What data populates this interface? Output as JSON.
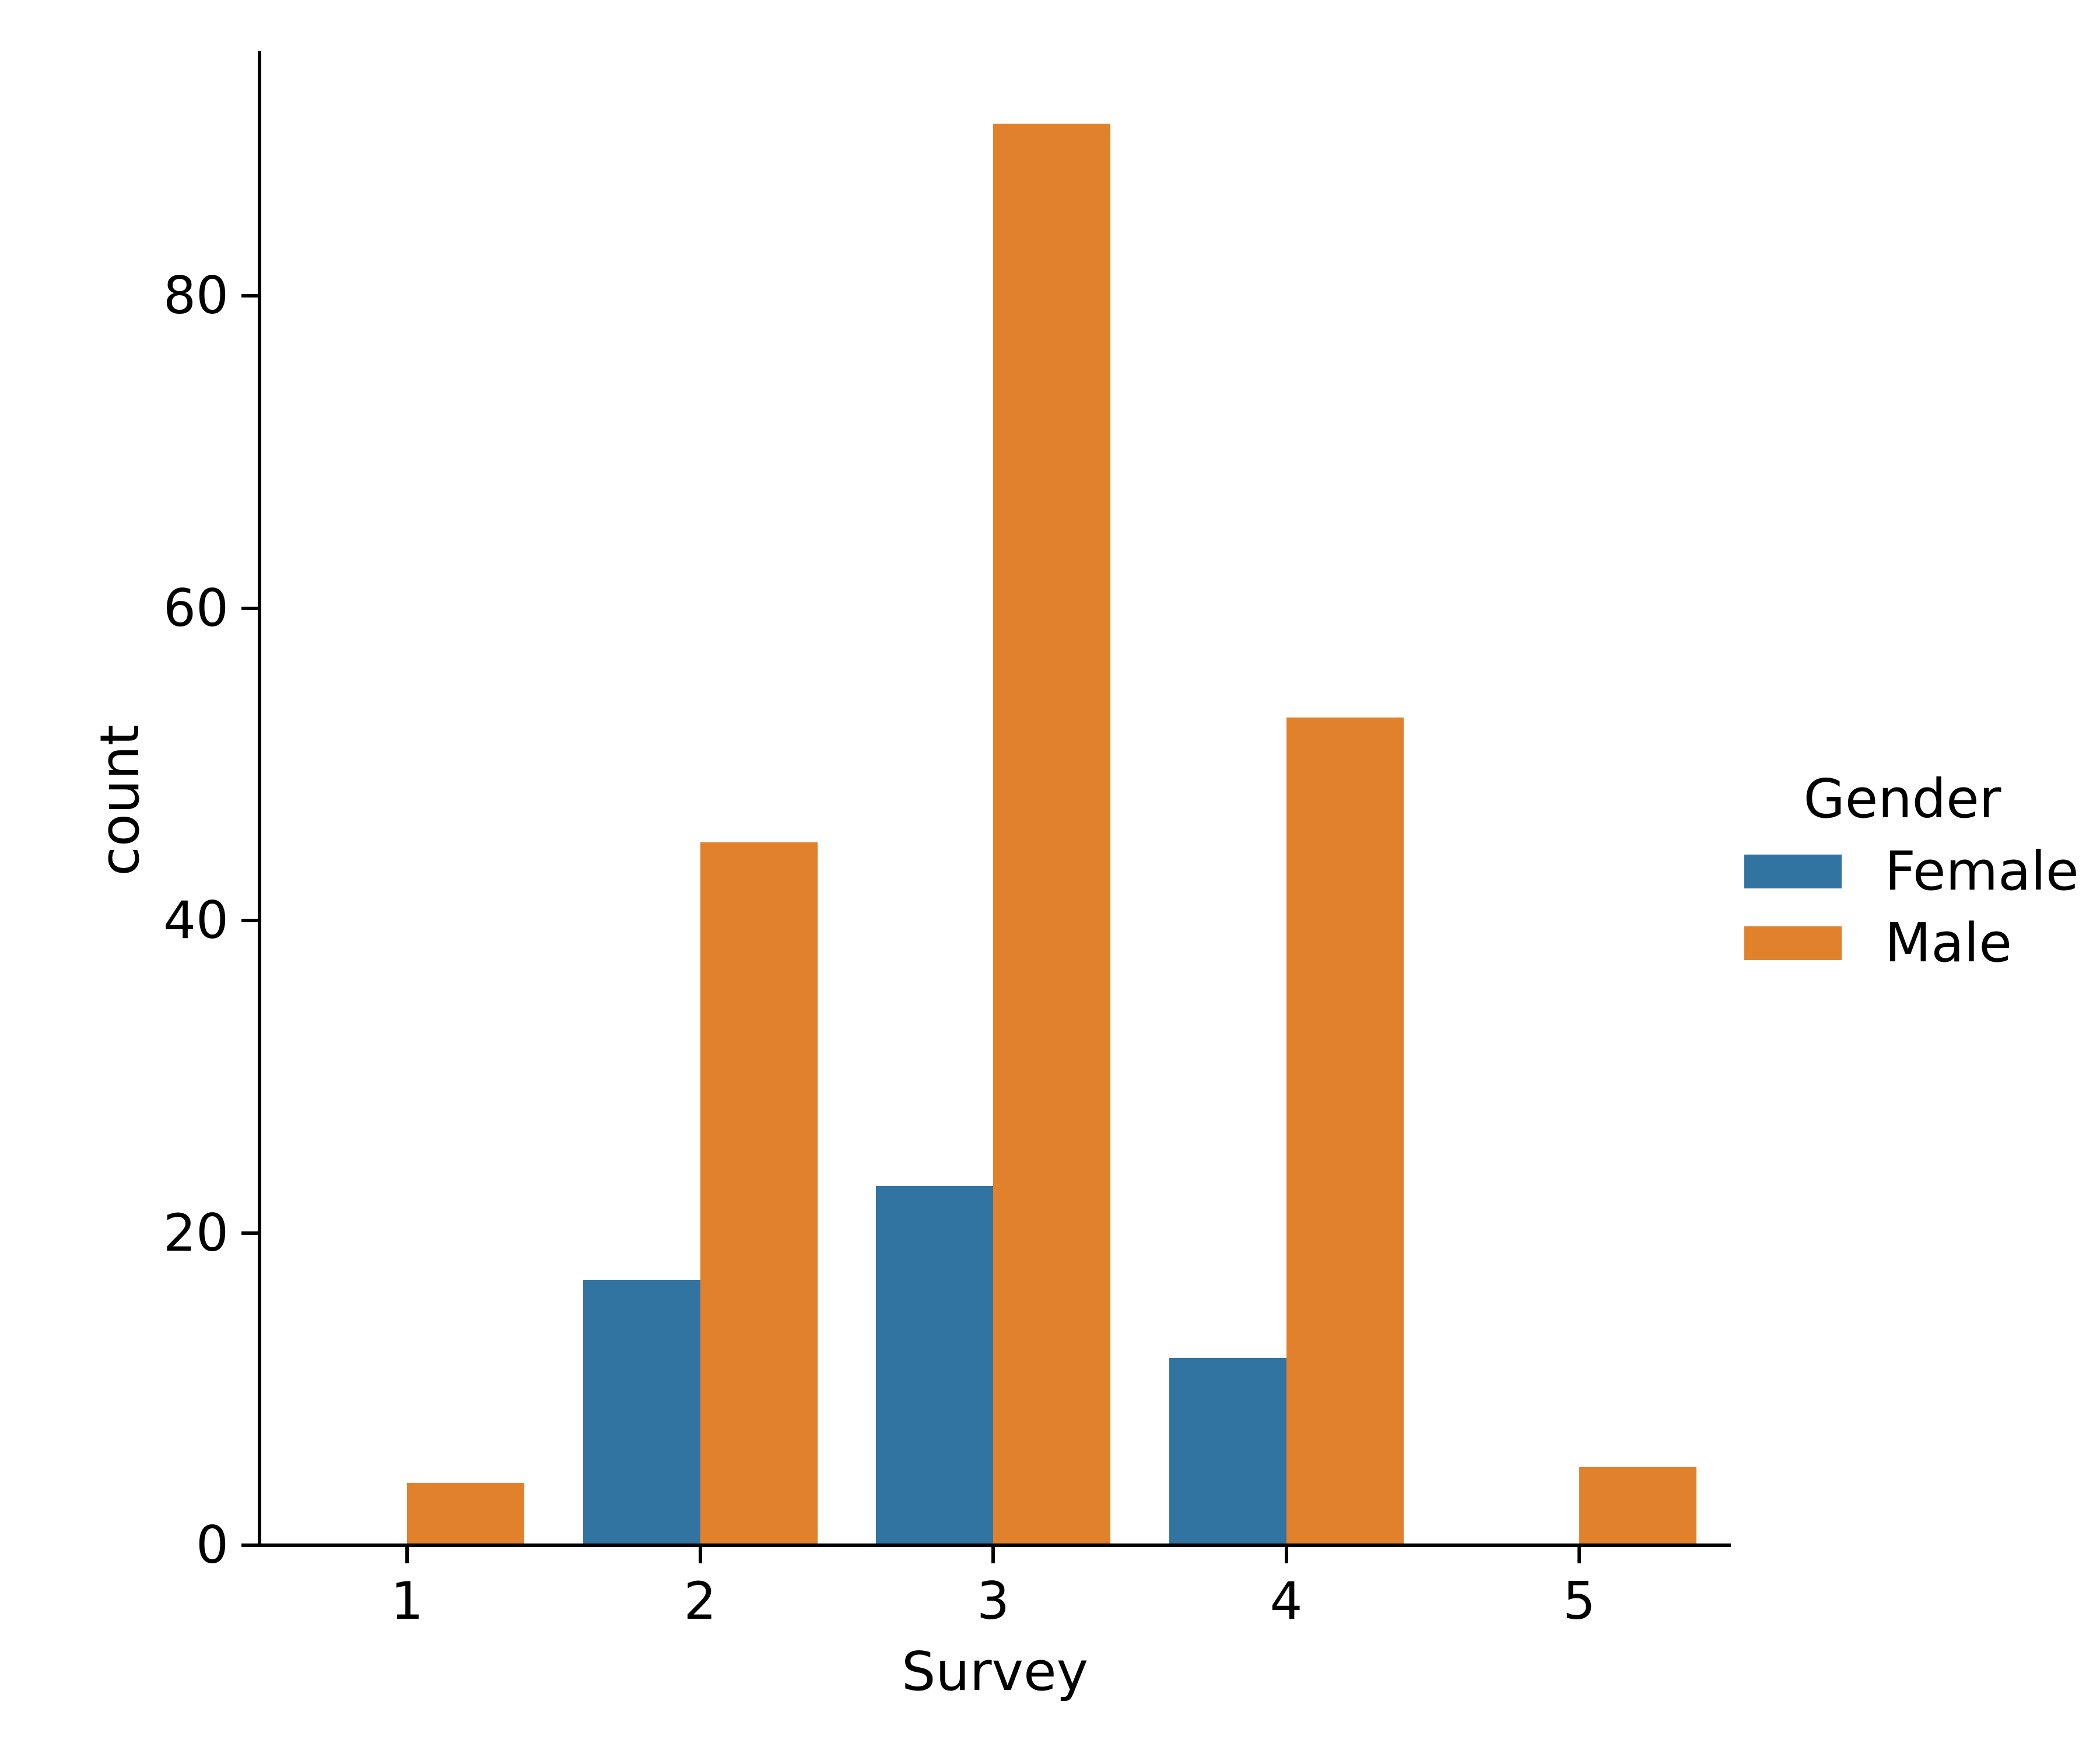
{
  "chart_data": {
    "type": "bar",
    "title": "",
    "xlabel": "Survey",
    "ylabel": "count",
    "categories": [
      "1",
      "2",
      "3",
      "4",
      "5"
    ],
    "series": [
      {
        "name": "Female",
        "color": "#3274A1",
        "values": [
          0,
          17,
          23,
          12,
          0
        ]
      },
      {
        "name": "Male",
        "color": "#E1812C",
        "values": [
          4,
          45,
          91,
          53,
          5
        ]
      }
    ],
    "yticks": [
      0,
      20,
      40,
      60,
      80
    ],
    "ylim": [
      0,
      95.5
    ],
    "grid": false,
    "bar_mode": "grouped",
    "legend": {
      "title": "Gender",
      "position": "right"
    },
    "axis_color": "#000000",
    "background": "#FFFFFF"
  }
}
